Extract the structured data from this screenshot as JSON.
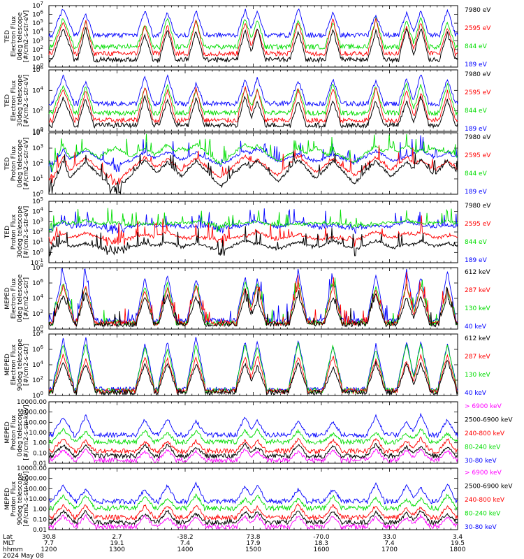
{
  "colors": {
    "blue": "#0000ff",
    "red": "#ff0000",
    "green": "#00dd00",
    "black": "#000000",
    "magenta": "#ff00ff"
  },
  "chart_data": [
    {
      "type": "line",
      "ylabel": [
        "TED",
        "Electron Flux",
        "0deg telescope",
        "[#/cm2-s-str-eV]"
      ],
      "yscale": "log",
      "ytick_labels": [
        "10^7",
        "10^6",
        "10^5",
        "10^4",
        "10^3",
        "10^2",
        "10^1",
        "10^0"
      ],
      "series": [
        {
          "name": "7980 eV",
          "color": "#000000"
        },
        {
          "name": "2595 eV",
          "color": "#ff0000"
        },
        {
          "name": "844 eV",
          "color": "#00dd00"
        },
        {
          "name": "189 eV",
          "color": "#0000ff"
        }
      ]
    },
    {
      "type": "line",
      "ylabel": [
        "TED",
        "Electron Flux",
        "30deg telescope",
        "[#/cm2-s-str-eV]"
      ],
      "yscale": "log",
      "ytick_labels": [
        "10^6",
        "10^4",
        "10^2",
        "10^0"
      ],
      "series": [
        {
          "name": "7980 eV",
          "color": "#000000"
        },
        {
          "name": "2595 eV",
          "color": "#ff0000"
        },
        {
          "name": "844 eV",
          "color": "#00dd00"
        },
        {
          "name": "189 eV",
          "color": "#0000ff"
        }
      ]
    },
    {
      "type": "line",
      "ylabel": [
        "TED",
        "Proton Flux",
        "0deg telescope",
        "[#/cm2-s-str-eV]"
      ],
      "yscale": "log",
      "ytick_labels": [
        "10^4",
        "10^3",
        "10^2",
        "10^1",
        "10^0"
      ],
      "series": [
        {
          "name": "7980 eV",
          "color": "#000000"
        },
        {
          "name": "2595 eV",
          "color": "#ff0000"
        },
        {
          "name": "844 eV",
          "color": "#00dd00"
        },
        {
          "name": "189 eV",
          "color": "#0000ff"
        }
      ]
    },
    {
      "type": "line",
      "ylabel": [
        "TED",
        "Proton Flux",
        "30deg telescope",
        "[#/cm2-s-str-eV]"
      ],
      "yscale": "log",
      "ytick_labels": [
        "10^5",
        "10^4",
        "10^3",
        "10^2",
        "10^1",
        "10^0",
        "10^-1"
      ],
      "series": [
        {
          "name": "7980 eV",
          "color": "#000000"
        },
        {
          "name": "2595 eV",
          "color": "#ff0000"
        },
        {
          "name": "844 eV",
          "color": "#00dd00"
        },
        {
          "name": "189 eV",
          "color": "#0000ff"
        }
      ]
    },
    {
      "type": "line",
      "ylabel": [
        "MEPED",
        "Electron Flux",
        "0deg telescope",
        "[#/cm2-s-str]"
      ],
      "yscale": "log",
      "ytick_labels": [
        "10^8",
        "10^6",
        "10^4",
        "10^2",
        "10^0"
      ],
      "series": [
        {
          "name": "612 keV",
          "color": "#000000"
        },
        {
          "name": "287 keV",
          "color": "#ff0000"
        },
        {
          "name": "130 keV",
          "color": "#00dd00"
        },
        {
          "name": "40 keV",
          "color": "#0000ff"
        }
      ]
    },
    {
      "type": "line",
      "ylabel": [
        "MEPED",
        "Electron Flux",
        "90deg telescope",
        "[#/cm2-s-str]"
      ],
      "yscale": "log",
      "ytick_labels": [
        "10^8",
        "10^6",
        "10^4",
        "10^2",
        "10^0"
      ],
      "series": [
        {
          "name": "612 keV",
          "color": "#000000"
        },
        {
          "name": "287 keV",
          "color": "#ff0000"
        },
        {
          "name": "130 keV",
          "color": "#00dd00"
        },
        {
          "name": "40 keV",
          "color": "#0000ff"
        }
      ]
    },
    {
      "type": "line",
      "ylabel": [
        "MEPED",
        "Proton Flux",
        "0deg telescope",
        "[#/cm2-s-str-keV]"
      ],
      "yscale": "log",
      "ytick_labels": [
        "10000.00",
        "1000.00",
        "100.00",
        "10.00",
        "1.00",
        "0.10",
        "0.01"
      ],
      "series": [
        {
          "name": "> 6900 keV",
          "color": "#ff00ff"
        },
        {
          "name": "2500-6900 keV",
          "color": "#000000"
        },
        {
          "name": "240-800 keV",
          "color": "#ff0000"
        },
        {
          "name": "80-240 keV",
          "color": "#00dd00"
        },
        {
          "name": "30-80 keV",
          "color": "#0000ff"
        }
      ]
    },
    {
      "type": "line",
      "ylabel": [
        "MEPED",
        "Proton Flux",
        "90deg telescope",
        "[#/cm2-s-str-keV]"
      ],
      "yscale": "log",
      "ytick_labels": [
        "10000.00",
        "1000.00",
        "100.00",
        "10.00",
        "1.00",
        "0.10",
        "0.01"
      ],
      "series": [
        {
          "name": "> 6900 keV",
          "color": "#ff00ff"
        },
        {
          "name": "2500-6900 keV",
          "color": "#000000"
        },
        {
          "name": "240-800 keV",
          "color": "#ff0000"
        },
        {
          "name": "80-240 keV",
          "color": "#00dd00"
        },
        {
          "name": "30-80 keV",
          "color": "#0000ff"
        }
      ]
    }
  ],
  "x_axis": {
    "row_labels": [
      "Lat",
      "MLT",
      "hhmm",
      "2024 May 08"
    ],
    "ticks": [
      {
        "lat": "30.8",
        "mlt": "7.7",
        "hhmm": "1200"
      },
      {
        "lat": "2.7",
        "mlt": "19.1",
        "hhmm": "1300"
      },
      {
        "lat": "-38.2",
        "mlt": "7.4",
        "hhmm": "1400"
      },
      {
        "lat": "73.8",
        "mlt": "17.9",
        "hhmm": "1500"
      },
      {
        "lat": "-70.0",
        "mlt": "18.3",
        "hhmm": "1600"
      },
      {
        "lat": "33.0",
        "mlt": "7.4",
        "hhmm": "1700"
      },
      {
        "lat": "3.4",
        "mlt": "19.5",
        "hhmm": "1800"
      }
    ]
  }
}
